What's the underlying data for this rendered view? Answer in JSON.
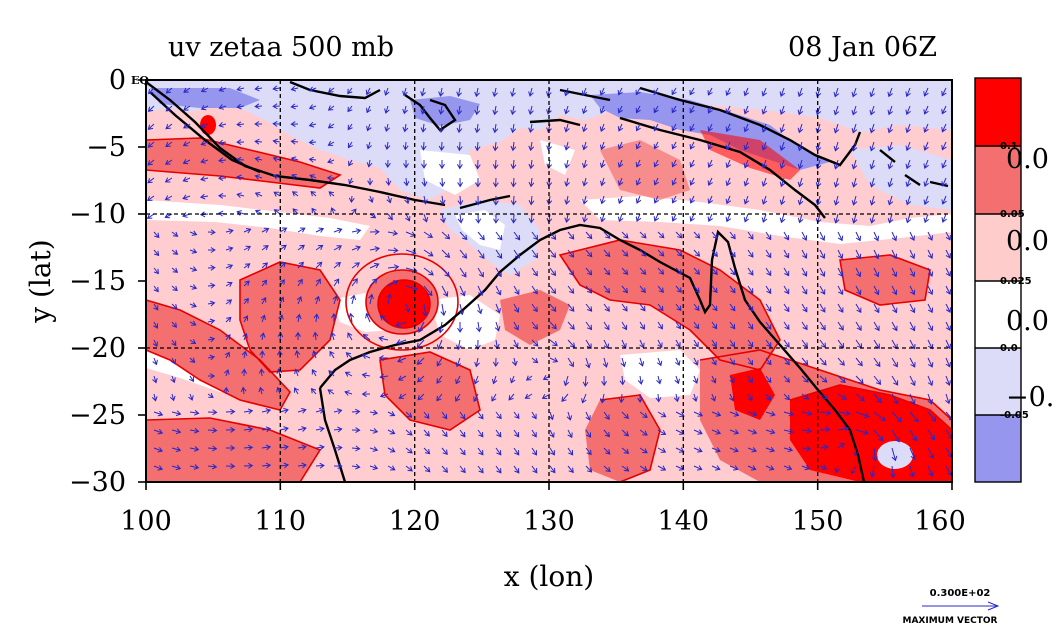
{
  "title": "uv zetaa 500 mb",
  "date": "08 Jan 06Z",
  "axes": {
    "xlabel": "x (lon)",
    "ylabel": "y (lat)",
    "x_ticks": [
      "100",
      "110",
      "120",
      "130",
      "140",
      "150",
      "160"
    ],
    "y_ticks": [
      "0",
      "−5",
      "−10",
      "−15",
      "−20",
      "−25",
      "−30"
    ],
    "x_range": [
      100,
      160
    ],
    "y_range": [
      -30,
      0
    ],
    "eq_label": "EQ"
  },
  "colorbar": {
    "levels": [
      "0.1",
      "0.05",
      "0.025",
      "0.0",
      "-0.05"
    ],
    "side_labels": [
      "0.0",
      "0.0",
      "0.0",
      "−0."
    ],
    "colors": [
      "#ff0000",
      "#f47070",
      "#ffcccc",
      "#ffffff",
      "#dcdcf8",
      "#9696ee"
    ]
  },
  "vector_key": {
    "value": "0.300E+02",
    "label": "MAXIMUM VECTOR"
  },
  "colors": {
    "strong_positive": "#ff0000",
    "positive": "#f47070",
    "weak_positive": "#ffcccc",
    "neutral": "#ffffff",
    "weak_negative": "#dcdcf8",
    "negative": "#9696ee",
    "vector": "#2828c8",
    "contour": "#e60000",
    "coast": "#000000"
  }
}
